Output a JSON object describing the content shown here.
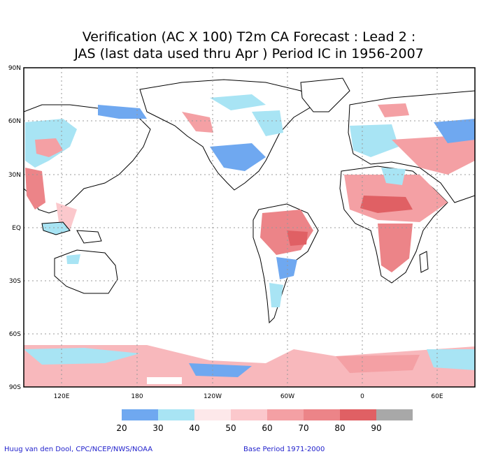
{
  "title": {
    "line1": "Verification (AC X 100) T2m CA Forecast : Lead 2 :",
    "line2": "JAS (last data used thru Apr ) Period IC in 1956-2007"
  },
  "map": {
    "lat_labels": [
      "90N",
      "60N",
      "30N",
      "EQ",
      "30S",
      "60S",
      "90S"
    ],
    "lon_labels": [
      "120E",
      "180",
      "120W",
      "60W",
      "0",
      "60E"
    ],
    "grid": true
  },
  "legend": {
    "ticks": [
      "20",
      "30",
      "40",
      "50",
      "60",
      "70",
      "80",
      "90"
    ],
    "colors": [
      "#6fa8f0",
      "#a8e4f4",
      "#fde8ea",
      "#fbc8cc",
      "#f4a0a4",
      "#ec8488",
      "#e06064",
      "#a8a8a8"
    ]
  },
  "footer": {
    "left": "Huug van den Dool, CPC/NCEP/NWS/NOAA",
    "right": "Base Period 1971-2000"
  },
  "colors": {
    "land_outline": "#000000",
    "grid": "#999999",
    "text": "#000000",
    "credit": "#2222cc"
  }
}
